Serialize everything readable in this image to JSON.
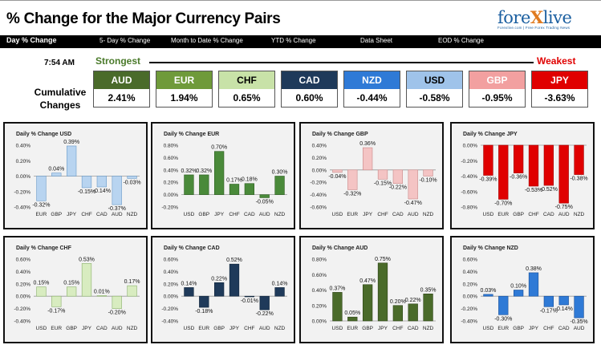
{
  "header": {
    "title": "% Change for the Major Currency Pairs",
    "logo": {
      "name_part1": "fore",
      "name_x": "X",
      "name_part2": "live",
      "tagline": "Forexlive.com | Free Forex Trading News"
    }
  },
  "nav": {
    "items": [
      "Day % Change",
      "5- Day % Change",
      "Month to Date % Change",
      "YTD % Change",
      "Data Sheet",
      "EOD % Change"
    ]
  },
  "summary": {
    "time": "7:54 AM",
    "cumulative_label_1": "Cumulative",
    "cumulative_label_2": "Changes",
    "strongest_label": "Strongest",
    "weakest_label": "Weakest",
    "ranking": [
      {
        "code": "AUD",
        "value": "2.41%",
        "color": "#4a6b2a"
      },
      {
        "code": "EUR",
        "value": "1.94%",
        "color": "#6f9a3a"
      },
      {
        "code": "CHF",
        "value": "0.65%",
        "color": "#c8e2a8",
        "text_color": "#000000"
      },
      {
        "code": "CAD",
        "value": "0.60%",
        "color": "#1f3a5a"
      },
      {
        "code": "NZD",
        "value": "-0.44%",
        "color": "#2f7ad6"
      },
      {
        "code": "USD",
        "value": "-0.58%",
        "color": "#9fc3ea",
        "text_color": "#000000"
      },
      {
        "code": "GBP",
        "value": "-0.95%",
        "color": "#f2a0a0"
      },
      {
        "code": "JPY",
        "value": "-3.63%",
        "color": "#e00000"
      }
    ]
  },
  "chart_data": [
    {
      "type": "bar",
      "title": "Daily % Change USD",
      "categories": [
        "EUR",
        "GBP",
        "JPY",
        "CHF",
        "CAD",
        "AUD",
        "NZD"
      ],
      "values": [
        -0.32,
        0.04,
        0.39,
        -0.15,
        -0.14,
        -0.37,
        -0.03
      ],
      "labels": [
        "-0.32%",
        "0.04%",
        "0.39%",
        "-0.15%",
        "-0.14%",
        "-0.37%",
        "-0.03%"
      ],
      "ylim": [
        -0.4,
        0.4
      ],
      "ticks": [
        "0.40%",
        "0.20%",
        "0.00%",
        "-0.20%",
        "-0.40%"
      ],
      "bar_color": "#b8d4f0",
      "bar_edge": "#6a9ac8",
      "background": "#f2f2f2"
    },
    {
      "type": "bar",
      "title": "Daily % Change EUR",
      "categories": [
        "USD",
        "GBP",
        "JPY",
        "CHF",
        "CAD",
        "AUD",
        "NZD"
      ],
      "values": [
        0.32,
        0.32,
        0.7,
        0.17,
        0.18,
        -0.05,
        0.3
      ],
      "labels": [
        "0.32%",
        "0.32%",
        "0.70%",
        "0.17%",
        "0.18%",
        "-0.05%",
        "0.30%"
      ],
      "ylim": [
        -0.2,
        0.8
      ],
      "ticks": [
        "0.80%",
        "0.60%",
        "0.40%",
        "0.20%",
        "0.00%",
        "-0.20%"
      ],
      "bar_color": "#4a8a3a",
      "bar_edge": "#2e5e22",
      "background": "#f2f2f2"
    },
    {
      "type": "bar",
      "title": "Daily % Change GBP",
      "categories": [
        "USD",
        "EUR",
        "JPY",
        "CHF",
        "CAD",
        "AUD",
        "NZD"
      ],
      "values": [
        -0.04,
        -0.32,
        0.36,
        -0.15,
        -0.22,
        -0.47,
        -0.1
      ],
      "labels": [
        "-0.04%",
        "-0.32%",
        "0.36%",
        "-0.15%",
        "-0.22%",
        "-0.47%",
        "-0.10%"
      ],
      "ylim": [
        -0.6,
        0.4
      ],
      "ticks": [
        "0.40%",
        "0.20%",
        "0.00%",
        "-0.20%",
        "-0.40%",
        "-0.60%"
      ],
      "bar_color": "#f4c4c4",
      "bar_edge": "#c88888",
      "background": "#f2f2f2"
    },
    {
      "type": "bar",
      "title": "Daily % Change JPY",
      "categories": [
        "USD",
        "EUR",
        "GBP",
        "CHF",
        "CAD",
        "AUD",
        "NZD"
      ],
      "values": [
        -0.39,
        -0.7,
        -0.36,
        -0.53,
        -0.52,
        -0.75,
        -0.38
      ],
      "labels": [
        "-0.39%",
        "-0.70%",
        "-0.36%",
        "-0.53%",
        "-0.52%",
        "-0.75%",
        "-0.38%"
      ],
      "ylim": [
        -0.8,
        0.0
      ],
      "ticks": [
        "0.00%",
        "-0.20%",
        "-0.40%",
        "-0.60%",
        "-0.80%"
      ],
      "bar_color": "#e00000",
      "bar_edge": "#a00000",
      "background": "#f2f2f2"
    },
    {
      "type": "bar",
      "title": "Daily % Change CHF",
      "categories": [
        "USD",
        "EUR",
        "GBP",
        "JPY",
        "CAD",
        "AUD",
        "NZD"
      ],
      "values": [
        0.15,
        -0.17,
        0.15,
        0.53,
        0.01,
        -0.2,
        0.17
      ],
      "labels": [
        "0.15%",
        "-0.17%",
        "0.15%",
        "0.53%",
        "0.01%",
        "-0.20%",
        "0.17%"
      ],
      "ylim": [
        -0.4,
        0.6
      ],
      "ticks": [
        "0.60%",
        "0.40%",
        "0.20%",
        "0.00%",
        "-0.20%",
        "-0.40%"
      ],
      "bar_color": "#d8ecc0",
      "bar_edge": "#8ab06a",
      "background": "#f2f2f2"
    },
    {
      "type": "bar",
      "title": "Daily % Change CAD",
      "categories": [
        "USD",
        "EUR",
        "GBP",
        "JPY",
        "CHF",
        "AUD",
        "NZD"
      ],
      "values": [
        0.14,
        -0.18,
        0.22,
        0.52,
        -0.01,
        -0.22,
        0.14
      ],
      "labels": [
        "0.14%",
        "-0.18%",
        "0.22%",
        "0.52%",
        "-0.01%",
        "-0.22%",
        "0.14%"
      ],
      "ylim": [
        -0.4,
        0.6
      ],
      "ticks": [
        "0.60%",
        "0.40%",
        "0.20%",
        "0.00%",
        "-0.20%",
        "-0.40%"
      ],
      "bar_color": "#1f3a5a",
      "bar_edge": "#10243a",
      "background": "#f2f2f2"
    },
    {
      "type": "bar",
      "title": "Daily % Change AUD",
      "categories": [
        "USD",
        "EUR",
        "GBP",
        "JPY",
        "CHF",
        "CAD",
        "NZD"
      ],
      "values": [
        0.37,
        0.05,
        0.47,
        0.75,
        0.2,
        0.22,
        0.35
      ],
      "labels": [
        "0.37%",
        "0.05%",
        "0.47%",
        "0.75%",
        "0.20%",
        "0.22%",
        "0.35%"
      ],
      "ylim": [
        0.0,
        0.8
      ],
      "ticks": [
        "0.80%",
        "0.60%",
        "0.40%",
        "0.20%",
        "0.00%"
      ],
      "bar_color": "#4a6b2a",
      "bar_edge": "#2e4418",
      "background": "#f2f2f2"
    },
    {
      "type": "bar",
      "title": "Daily % Change NZD",
      "categories": [
        "USD",
        "EUR",
        "GBP",
        "JPY",
        "CHF",
        "CAD",
        "AUD"
      ],
      "values": [
        0.03,
        -0.3,
        0.1,
        0.38,
        -0.17,
        -0.14,
        -0.35
      ],
      "labels": [
        "0.03%",
        "-0.30%",
        "0.10%",
        "0.38%",
        "-0.17%",
        "-0.14%",
        "-0.35%"
      ],
      "ylim": [
        -0.4,
        0.6
      ],
      "ticks": [
        "0.60%",
        "0.40%",
        "0.20%",
        "0.00%",
        "-0.20%",
        "-0.40%"
      ],
      "bar_color": "#2f7ad6",
      "bar_edge": "#1a4f96",
      "background": "#f2f2f2"
    }
  ]
}
